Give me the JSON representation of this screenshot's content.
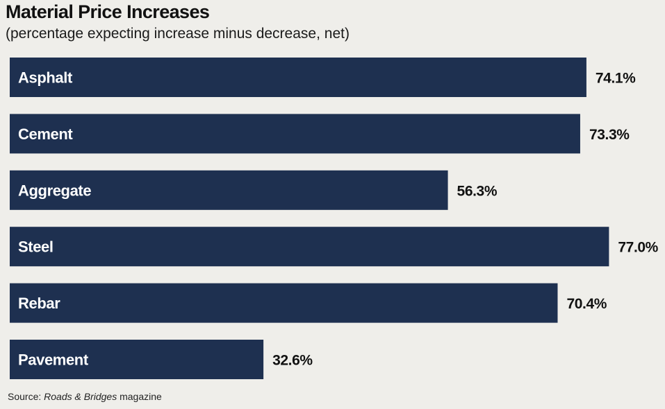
{
  "chart_data": {
    "type": "bar",
    "orientation": "horizontal",
    "title": "Material Price Increases",
    "subtitle": "(percentage expecting increase minus decrease, net)",
    "categories": [
      "Asphalt",
      "Cement",
      "Aggregate",
      "Steel",
      "Rebar",
      "Pavement"
    ],
    "values": [
      74.1,
      73.3,
      56.3,
      77.0,
      70.4,
      32.6
    ],
    "value_labels": [
      "74.1%",
      "73.3%",
      "56.3%",
      "77.0%",
      "70.4%",
      "32.6%"
    ],
    "xlim": [
      0,
      80
    ],
    "grid": false,
    "legend": "none",
    "bar_color": "#1e3050",
    "category_label_color": "#ffffff",
    "value_label_color": "#111111"
  },
  "source": {
    "prefix": "Source: ",
    "publication": "Roads & Bridges",
    "suffix": " magazine"
  }
}
